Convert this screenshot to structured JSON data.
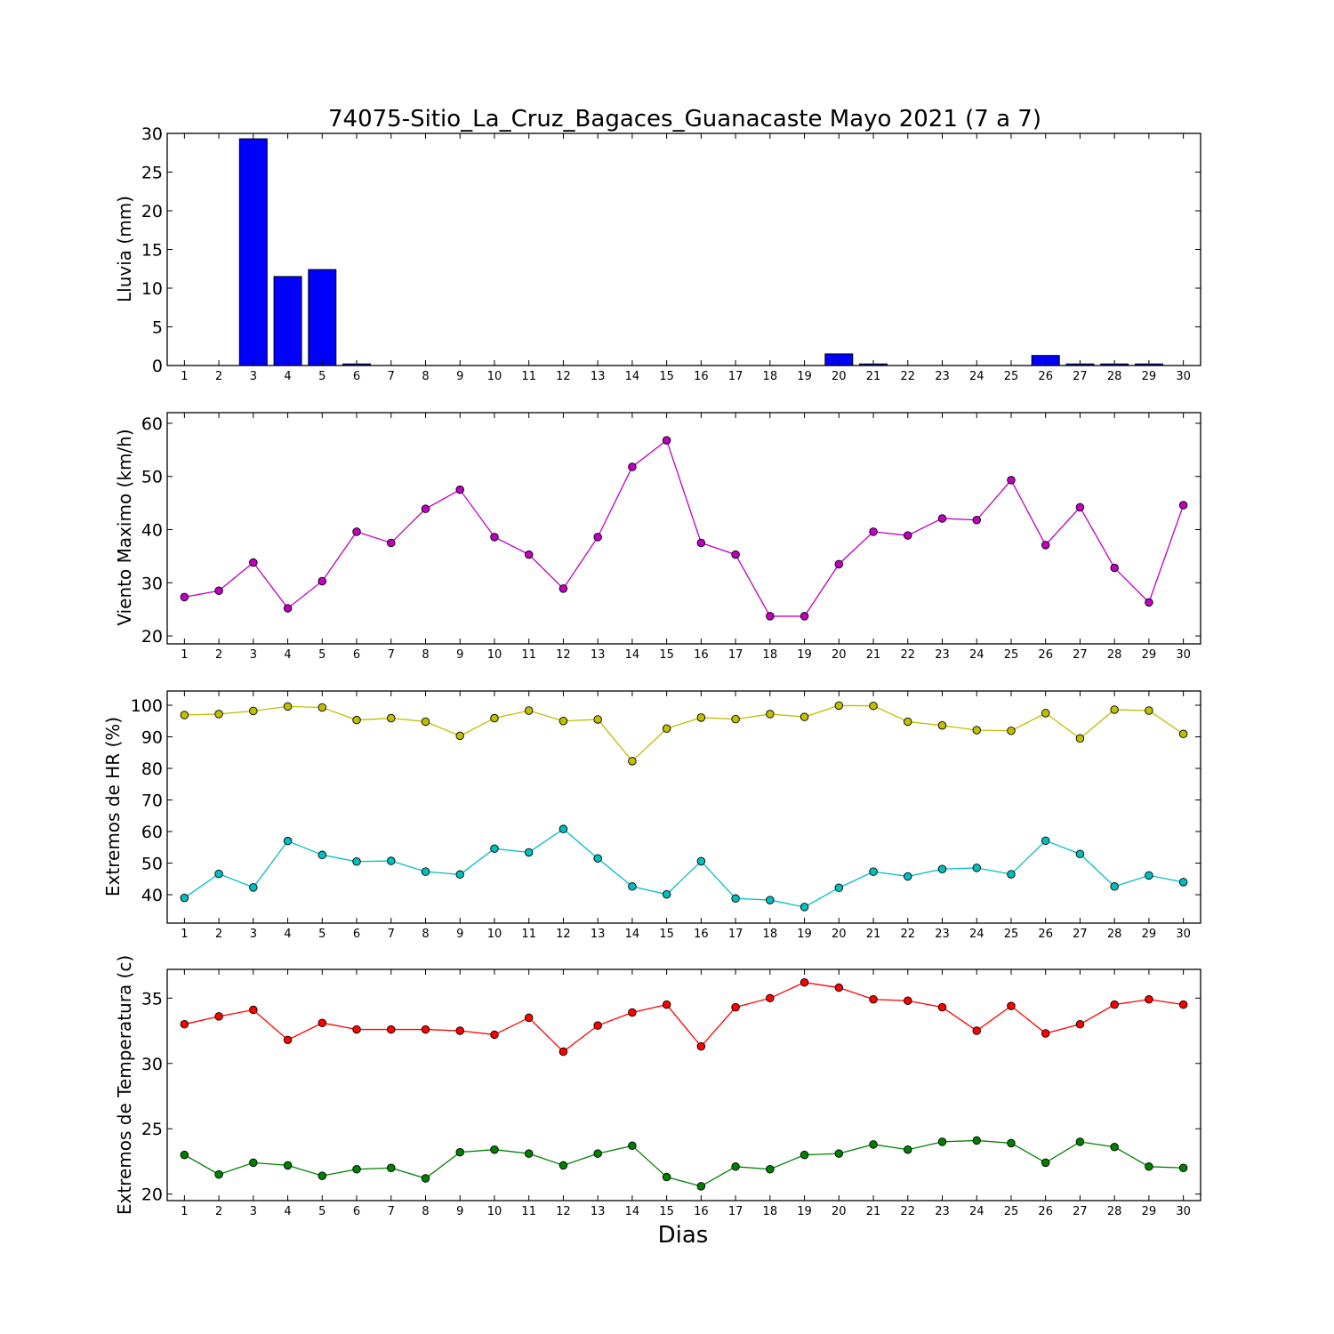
{
  "figure": {
    "title": "74075-Sitio_La_Cruz_Bagaces_Guanacaste Mayo 2021  (7 a 7)",
    "xlabel": "Dias"
  },
  "colors": {
    "bars": "#0000ff",
    "wind": "#bf00bf",
    "hr_max": "#bfbf00",
    "hr_min": "#00bfbf",
    "temp_max": "#ff0000",
    "temp_min": "#008000"
  },
  "chart_data": [
    {
      "type": "bar",
      "id": "lluvia",
      "categories": [
        "1",
        "2",
        "3",
        "4",
        "5",
        "6",
        "7",
        "8",
        "9",
        "10",
        "11",
        "12",
        "13",
        "14",
        "15",
        "16",
        "17",
        "18",
        "19",
        "20",
        "21",
        "22",
        "23",
        "24",
        "25",
        "26",
        "27",
        "28",
        "29",
        "30"
      ],
      "values": [
        0,
        0,
        29.3,
        11.5,
        12.4,
        0.2,
        0,
        0,
        0,
        0,
        0,
        0,
        0,
        0,
        0,
        0,
        0,
        0,
        0,
        1.5,
        0.2,
        0,
        0,
        0,
        0,
        1.3,
        0.2,
        0.2,
        0.2,
        0
      ],
      "ylabel": "Lluvia (mm)",
      "xlabel": "",
      "ylim": [
        0,
        30
      ],
      "yticks": [
        0,
        5,
        10,
        15,
        20,
        25,
        30
      ]
    },
    {
      "type": "line",
      "id": "viento",
      "x": [
        1,
        2,
        3,
        4,
        5,
        6,
        7,
        8,
        9,
        10,
        11,
        12,
        13,
        14,
        15,
        16,
        17,
        18,
        19,
        20,
        21,
        22,
        23,
        24,
        25,
        26,
        27,
        28,
        29,
        30
      ],
      "series": [
        {
          "values": [
            27.3,
            28.5,
            33.8,
            25.2,
            30.3,
            39.6,
            37.5,
            43.9,
            47.5,
            38.6,
            35.3,
            28.9,
            38.6,
            51.8,
            56.8,
            37.5,
            35.3,
            23.7,
            23.7,
            33.5,
            39.6,
            38.9,
            42.1,
            41.8,
            49.3,
            37.1,
            44.2,
            32.8,
            26.3,
            44.6
          ]
        }
      ],
      "ylabel": "Viento Maximo (km/h)",
      "xlabel": "",
      "ylim": [
        18.5,
        62
      ],
      "yticks": [
        20,
        30,
        40,
        50,
        60
      ]
    },
    {
      "type": "line",
      "id": "hr",
      "x": [
        1,
        2,
        3,
        4,
        5,
        6,
        7,
        8,
        9,
        10,
        11,
        12,
        13,
        14,
        15,
        16,
        17,
        18,
        19,
        20,
        21,
        22,
        23,
        24,
        25,
        26,
        27,
        28,
        29,
        30
      ],
      "series": [
        {
          "values": [
            96.9,
            97.2,
            98.2,
            99.6,
            99.3,
            95.3,
            95.9,
            94.8,
            90.3,
            95.9,
            98.3,
            95.0,
            95.5,
            82.3,
            92.6,
            96.1,
            95.6,
            97.2,
            96.3,
            99.9,
            99.8,
            94.8,
            93.6,
            92.1,
            91.9,
            97.5,
            89.5,
            98.6,
            98.3,
            90.9
          ]
        },
        {
          "values": [
            39.0,
            46.6,
            42.3,
            57.0,
            52.6,
            50.5,
            50.7,
            47.3,
            46.4,
            54.6,
            53.4,
            60.8,
            51.5,
            42.6,
            40.1,
            50.6,
            38.8,
            38.3,
            36.1,
            42.2,
            47.3,
            45.8,
            48.1,
            48.5,
            46.5,
            57.1,
            52.9,
            42.6,
            46.1,
            44.0
          ]
        }
      ],
      "ylabel": "Extremos de HR (%)",
      "xlabel": "",
      "ylim": [
        31,
        104.5
      ],
      "yticks": [
        40,
        50,
        60,
        70,
        80,
        90,
        100
      ]
    },
    {
      "type": "line",
      "id": "temperatura",
      "x": [
        1,
        2,
        3,
        4,
        5,
        6,
        7,
        8,
        9,
        10,
        11,
        12,
        13,
        14,
        15,
        16,
        17,
        18,
        19,
        20,
        21,
        22,
        23,
        24,
        25,
        26,
        27,
        28,
        29,
        30
      ],
      "series": [
        {
          "values": [
            33.0,
            33.6,
            34.1,
            31.8,
            33.1,
            32.6,
            32.6,
            32.6,
            32.5,
            32.2,
            33.5,
            30.9,
            32.9,
            33.9,
            34.5,
            31.3,
            34.3,
            35.0,
            36.2,
            35.8,
            34.9,
            34.8,
            34.3,
            32.5,
            34.4,
            32.3,
            33.0,
            34.5,
            34.9,
            34.5
          ]
        },
        {
          "values": [
            23.0,
            21.5,
            22.4,
            22.2,
            21.4,
            21.9,
            22.0,
            21.2,
            23.2,
            23.4,
            23.1,
            22.2,
            23.1,
            23.7,
            21.3,
            20.6,
            22.1,
            21.9,
            23.0,
            23.1,
            23.8,
            23.4,
            24.0,
            24.1,
            23.9,
            22.4,
            24.0,
            23.6,
            22.1,
            22.0
          ]
        }
      ],
      "ylabel": "Extremos de Temperatura (c)",
      "xlabel": "",
      "ylim": [
        19.5,
        37.2
      ],
      "yticks": [
        20,
        25,
        30,
        35
      ]
    }
  ]
}
